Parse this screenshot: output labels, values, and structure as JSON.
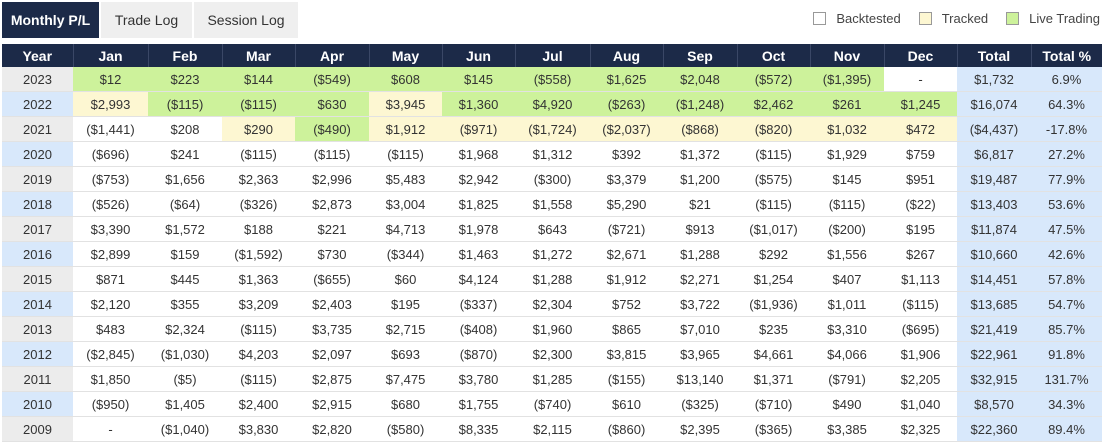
{
  "tabs": [
    {
      "label": "Monthly P/L",
      "active": true
    },
    {
      "label": "Trade Log",
      "active": false
    },
    {
      "label": "Session Log",
      "active": false
    }
  ],
  "legend": [
    {
      "label": "Backtested",
      "color": "#ffffff",
      "icon": "backtested-swatch"
    },
    {
      "label": "Tracked",
      "color": "#fdf7d2",
      "icon": "tracked-swatch"
    },
    {
      "label": "Live Trading",
      "color": "#cdf29b",
      "icon": "live-trading-swatch"
    }
  ],
  "colors": {
    "live": "#cdf29b",
    "tracked": "#fdf7d2",
    "backtested": "#ffffff",
    "total_bg": "#d8e8fb",
    "year_odd": "#ececec",
    "year_even": "#d8e8fb",
    "header": "#1c2a48"
  },
  "table": {
    "headers": [
      "Year",
      "Jan",
      "Feb",
      "Mar",
      "Apr",
      "May",
      "Jun",
      "Jul",
      "Aug",
      "Sep",
      "Oct",
      "Nov",
      "Dec",
      "Total",
      "Total %"
    ],
    "rows": [
      {
        "year": "2023",
        "months": [
          "$12",
          "$223",
          "$144",
          "($549)",
          "$608",
          "$145",
          "($558)",
          "$1,625",
          "$2,048",
          "($572)",
          "($1,395)",
          "-"
        ],
        "status": [
          "L",
          "L",
          "L",
          "L",
          "L",
          "L",
          "L",
          "L",
          "L",
          "L",
          "L",
          "B"
        ],
        "total": "$1,732",
        "pct": "6.9%"
      },
      {
        "year": "2022",
        "months": [
          "$2,993",
          "($115)",
          "($115)",
          "$630",
          "$3,945",
          "$1,360",
          "$4,920",
          "($263)",
          "($1,248)",
          "$2,462",
          "$261",
          "$1,245"
        ],
        "status": [
          "T",
          "L",
          "L",
          "L",
          "T",
          "L",
          "L",
          "L",
          "L",
          "L",
          "L",
          "L"
        ],
        "total": "$16,074",
        "pct": "64.3%"
      },
      {
        "year": "2021",
        "months": [
          "($1,441)",
          "$208",
          "$290",
          "($490)",
          "$1,912",
          "($971)",
          "($1,724)",
          "($2,037)",
          "($868)",
          "($820)",
          "$1,032",
          "$472"
        ],
        "status": [
          "B",
          "B",
          "T",
          "L",
          "T",
          "T",
          "T",
          "T",
          "T",
          "T",
          "T",
          "T"
        ],
        "total": "($4,437)",
        "pct": "-17.8%"
      },
      {
        "year": "2020",
        "months": [
          "($696)",
          "$241",
          "($115)",
          "($115)",
          "($115)",
          "$1,968",
          "$1,312",
          "$392",
          "$1,372",
          "($115)",
          "$1,929",
          "$759"
        ],
        "status": [
          "B",
          "B",
          "B",
          "B",
          "B",
          "B",
          "B",
          "B",
          "B",
          "B",
          "B",
          "B"
        ],
        "total": "$6,817",
        "pct": "27.2%"
      },
      {
        "year": "2019",
        "months": [
          "($753)",
          "$1,656",
          "$2,363",
          "$2,996",
          "$5,483",
          "$2,942",
          "($300)",
          "$3,379",
          "$1,200",
          "($575)",
          "$145",
          "$951"
        ],
        "status": [
          "B",
          "B",
          "B",
          "B",
          "B",
          "B",
          "B",
          "B",
          "B",
          "B",
          "B",
          "B"
        ],
        "total": "$19,487",
        "pct": "77.9%"
      },
      {
        "year": "2018",
        "months": [
          "($526)",
          "($64)",
          "($326)",
          "$2,873",
          "$3,004",
          "$1,825",
          "$1,558",
          "$5,290",
          "$21",
          "($115)",
          "($115)",
          "($22)"
        ],
        "status": [
          "B",
          "B",
          "B",
          "B",
          "B",
          "B",
          "B",
          "B",
          "B",
          "B",
          "B",
          "B"
        ],
        "total": "$13,403",
        "pct": "53.6%"
      },
      {
        "year": "2017",
        "months": [
          "$3,390",
          "$1,572",
          "$188",
          "$221",
          "$4,713",
          "$1,978",
          "$643",
          "($721)",
          "$913",
          "($1,017)",
          "($200)",
          "$195"
        ],
        "status": [
          "B",
          "B",
          "B",
          "B",
          "B",
          "B",
          "B",
          "B",
          "B",
          "B",
          "B",
          "B"
        ],
        "total": "$11,874",
        "pct": "47.5%"
      },
      {
        "year": "2016",
        "months": [
          "$2,899",
          "$159",
          "($1,592)",
          "$730",
          "($344)",
          "$1,463",
          "$1,272",
          "$2,671",
          "$1,288",
          "$292",
          "$1,556",
          "$267"
        ],
        "status": [
          "B",
          "B",
          "B",
          "B",
          "B",
          "B",
          "B",
          "B",
          "B",
          "B",
          "B",
          "B"
        ],
        "total": "$10,660",
        "pct": "42.6%"
      },
      {
        "year": "2015",
        "months": [
          "$871",
          "$445",
          "$1,363",
          "($655)",
          "$60",
          "$4,124",
          "$1,288",
          "$1,912",
          "$2,271",
          "$1,254",
          "$407",
          "$1,113"
        ],
        "status": [
          "B",
          "B",
          "B",
          "B",
          "B",
          "B",
          "B",
          "B",
          "B",
          "B",
          "B",
          "B"
        ],
        "total": "$14,451",
        "pct": "57.8%"
      },
      {
        "year": "2014",
        "months": [
          "$2,120",
          "$355",
          "$3,209",
          "$2,403",
          "$195",
          "($337)",
          "$2,304",
          "$752",
          "$3,722",
          "($1,936)",
          "$1,011",
          "($115)"
        ],
        "status": [
          "B",
          "B",
          "B",
          "B",
          "B",
          "B",
          "B",
          "B",
          "B",
          "B",
          "B",
          "B"
        ],
        "total": "$13,685",
        "pct": "54.7%"
      },
      {
        "year": "2013",
        "months": [
          "$483",
          "$2,324",
          "($115)",
          "$3,735",
          "$2,715",
          "($408)",
          "$1,960",
          "$865",
          "$7,010",
          "$235",
          "$3,310",
          "($695)"
        ],
        "status": [
          "B",
          "B",
          "B",
          "B",
          "B",
          "B",
          "B",
          "B",
          "B",
          "B",
          "B",
          "B"
        ],
        "total": "$21,419",
        "pct": "85.7%"
      },
      {
        "year": "2012",
        "months": [
          "($2,845)",
          "($1,030)",
          "$4,203",
          "$2,097",
          "$693",
          "($870)",
          "$2,300",
          "$3,815",
          "$3,965",
          "$4,661",
          "$4,066",
          "$1,906"
        ],
        "status": [
          "B",
          "B",
          "B",
          "B",
          "B",
          "B",
          "B",
          "B",
          "B",
          "B",
          "B",
          "B"
        ],
        "total": "$22,961",
        "pct": "91.8%"
      },
      {
        "year": "2011",
        "months": [
          "$1,850",
          "($5)",
          "($115)",
          "$2,875",
          "$7,475",
          "$3,780",
          "$1,285",
          "($155)",
          "$13,140",
          "$1,371",
          "($791)",
          "$2,205"
        ],
        "status": [
          "B",
          "B",
          "B",
          "B",
          "B",
          "B",
          "B",
          "B",
          "B",
          "B",
          "B",
          "B"
        ],
        "total": "$32,915",
        "pct": "131.7%"
      },
      {
        "year": "2010",
        "months": [
          "($950)",
          "$1,405",
          "$2,400",
          "$2,915",
          "$680",
          "$1,755",
          "($740)",
          "$610",
          "($325)",
          "($710)",
          "$490",
          "$1,040"
        ],
        "status": [
          "B",
          "B",
          "B",
          "B",
          "B",
          "B",
          "B",
          "B",
          "B",
          "B",
          "B",
          "B"
        ],
        "total": "$8,570",
        "pct": "34.3%"
      },
      {
        "year": "2009",
        "months": [
          "-",
          "($1,040)",
          "$3,830",
          "$2,820",
          "($580)",
          "$8,335",
          "$2,115",
          "($860)",
          "$2,395",
          "($365)",
          "$3,385",
          "$2,325"
        ],
        "status": [
          "B",
          "B",
          "B",
          "B",
          "B",
          "B",
          "B",
          "B",
          "B",
          "B",
          "B",
          "B"
        ],
        "total": "$22,360",
        "pct": "89.4%"
      }
    ]
  }
}
